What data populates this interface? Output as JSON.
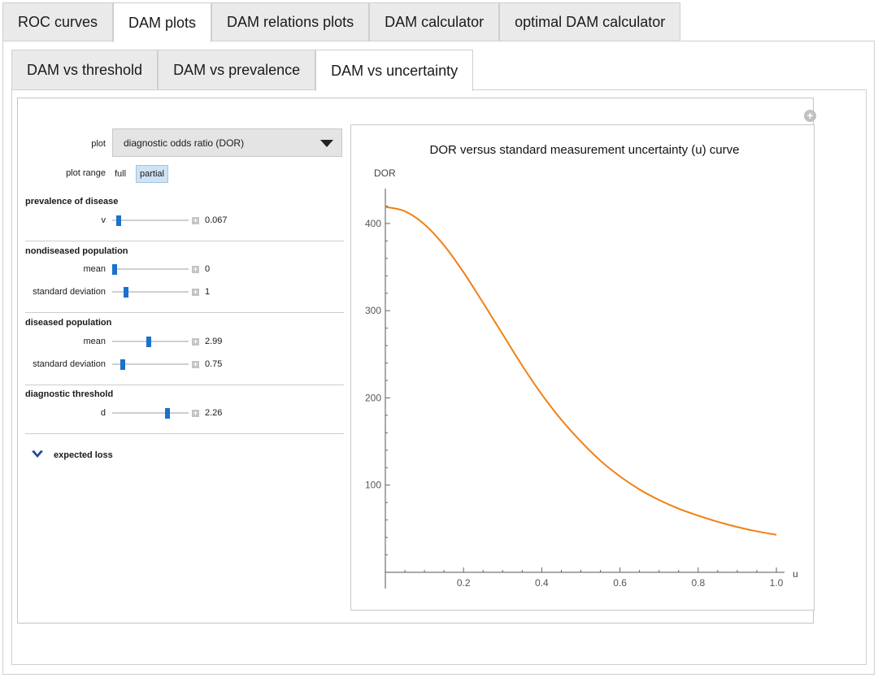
{
  "outer_tabs": [
    "ROC curves",
    "DAM plots",
    "DAM relations plots",
    "DAM calculator",
    "optimal DAM calculator"
  ],
  "inner_tabs": [
    "DAM vs threshold",
    "DAM vs prevalence",
    "DAM vs uncertainty"
  ],
  "controls": {
    "plot_label": "plot",
    "plot_value": "diagnostic odds ratio (DOR)",
    "plot_range_label": "plot range",
    "range_full": "full",
    "range_partial": "partial",
    "prevalence": {
      "title": "prevalence of disease",
      "v_label": "v",
      "v_value": "0.067"
    },
    "nondiseased": {
      "title": "nondiseased population",
      "mean_label": "mean",
      "mean_value": "0",
      "sd_label": "standard deviation",
      "sd_value": "1"
    },
    "diseased": {
      "title": "diseased population",
      "mean_label": "mean",
      "mean_value": "2.99",
      "sd_label": "standard deviation",
      "sd_value": "0.75"
    },
    "threshold": {
      "title": "diagnostic threshold",
      "d_label": "d",
      "d_value": "2.26"
    },
    "expected_loss_label": "expected loss"
  },
  "chart_data": {
    "type": "line",
    "title": "DOR versus standard measurement uncertainty (u) curve",
    "xlabel": "u",
    "ylabel": "DOR",
    "xlim": [
      0,
      1
    ],
    "ylim": [
      0,
      440
    ],
    "x_ticks": [
      "0.2",
      "0.4",
      "0.6",
      "0.8",
      "1.0"
    ],
    "y_ticks": [
      "100",
      "200",
      "300",
      "400"
    ],
    "color": "#f07f13",
    "x": [
      0.0,
      0.05,
      0.1,
      0.15,
      0.2,
      0.25,
      0.3,
      0.35,
      0.4,
      0.45,
      0.5,
      0.55,
      0.6,
      0.65,
      0.7,
      0.75,
      0.8,
      0.85,
      0.9,
      0.95,
      1.0
    ],
    "y": [
      419,
      414,
      399,
      375,
      344,
      309,
      273,
      237,
      204,
      175,
      150,
      128,
      110,
      95,
      83,
      73,
      65,
      58,
      52,
      47,
      43
    ]
  }
}
